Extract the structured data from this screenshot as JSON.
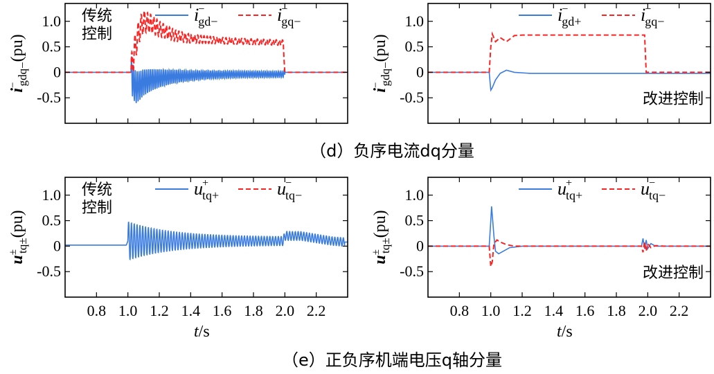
{
  "captions": {
    "d": "（d）负序电流dq分量",
    "e": "（e）正负序机端电压q轴分量"
  },
  "colors": {
    "blue": "#3a7be0",
    "red": "#ff2020"
  },
  "chart_data": [
    {
      "id": "d_left",
      "type": "line",
      "ylabel": {
        "main": "i",
        "sup": "−",
        "sub": "gdq−",
        "suffix": "(pu)"
      },
      "ylim": [
        -1.0,
        1.35
      ],
      "xlim": [
        0.6,
        2.4
      ],
      "yticks": [
        "1.0",
        "0.5",
        "0",
        "-0.5"
      ],
      "ytick_values": [
        1.0,
        0.5,
        0,
        -0.5
      ],
      "annotation": [
        "传统",
        "控制"
      ],
      "legend": [
        {
          "main": "i",
          "sup": "−",
          "sub": "gd−",
          "color": "blue",
          "dash": false
        },
        {
          "main": "i",
          "sup": "−",
          "sub": "gq−",
          "color": "red",
          "dash": true
        }
      ],
      "series": [
        {
          "color": "blue",
          "dash": false,
          "x": [
            0.6,
            1.02,
            1.03,
            1.05,
            1.08,
            1.1,
            1.15,
            1.2,
            1.3,
            1.5,
            1.7,
            1.9,
            1.99,
            2.0,
            2.4
          ],
          "y": [
            0,
            0,
            -0.15,
            -0.3,
            -0.25,
            -0.2,
            -0.15,
            -0.12,
            -0.08,
            -0.05,
            -0.04,
            -0.04,
            -0.04,
            0,
            0
          ],
          "osc": {
            "x0": 1.02,
            "x1": 2.0,
            "amp": 0.3,
            "amp_end": 0.06,
            "period": 0.012
          }
        },
        {
          "color": "red",
          "dash": true,
          "x": [
            0.6,
            1.02,
            1.04,
            1.07,
            1.1,
            1.15,
            1.2,
            1.3,
            1.4,
            1.6,
            1.8,
            1.99,
            2.0,
            2.4
          ],
          "y": [
            0,
            0,
            0.4,
            0.8,
            1.0,
            0.95,
            0.85,
            0.72,
            0.66,
            0.62,
            0.6,
            0.58,
            0,
            0
          ],
          "osc": {
            "x0": 1.02,
            "x1": 2.0,
            "amp": 0.25,
            "amp_end": 0.05,
            "period": 0.02
          }
        }
      ]
    },
    {
      "id": "d_right",
      "type": "line",
      "ylabel": {
        "main": "i",
        "sup": "−",
        "sub": "gdq−",
        "suffix": "(pu)"
      },
      "ylim": [
        -1.0,
        1.35
      ],
      "xlim": [
        0.6,
        2.4
      ],
      "yticks": [
        "1.0",
        "0.5",
        "0",
        "-0.5"
      ],
      "ytick_values": [
        1.0,
        0.5,
        0,
        -0.5
      ],
      "annotation": [
        "改进控制"
      ],
      "legend": [
        {
          "main": "i",
          "sup": "−",
          "sub": "gd+",
          "color": "blue",
          "dash": false
        },
        {
          "main": "i",
          "sup": "−",
          "sub": "gq−",
          "color": "red",
          "dash": true
        }
      ],
      "series": [
        {
          "color": "blue",
          "dash": false,
          "x": [
            0.6,
            0.99,
            1.0,
            1.01,
            1.03,
            1.06,
            1.1,
            1.15,
            1.25,
            1.5,
            2.4
          ],
          "y": [
            0,
            0,
            -0.35,
            -0.3,
            -0.15,
            -0.02,
            0.04,
            0.0,
            -0.02,
            -0.02,
            -0.02
          ]
        },
        {
          "color": "red",
          "dash": true,
          "x": [
            0.6,
            0.99,
            1.0,
            1.01,
            1.03,
            1.06,
            1.1,
            1.15,
            1.2,
            1.98,
            1.99,
            2.4
          ],
          "y": [
            0,
            0,
            0.5,
            0.75,
            0.6,
            0.68,
            0.6,
            0.72,
            0.73,
            0.73,
            0,
            0
          ]
        }
      ]
    },
    {
      "id": "e_left",
      "type": "line",
      "ylabel": {
        "main": "u",
        "sup": "±",
        "sub": "tq±",
        "suffix": "(pu)"
      },
      "ylim": [
        -1.0,
        1.35
      ],
      "xlim": [
        0.6,
        2.4
      ],
      "yticks": [
        "1.0",
        "0.5",
        "0",
        "-0.5"
      ],
      "ytick_values": [
        1.0,
        0.5,
        0,
        -0.5
      ],
      "xticks": [
        "0.8",
        "1.0",
        "1.2",
        "1.4",
        "1.6",
        "1.8",
        "2.0",
        "2.2"
      ],
      "xtick_values": [
        0.8,
        1.0,
        1.2,
        1.4,
        1.6,
        1.8,
        2.0,
        2.2
      ],
      "xlabel": {
        "main": "t",
        "suffix": "/s"
      },
      "annotation": [
        "传统",
        "控制"
      ],
      "legend": [
        {
          "main": "u",
          "sup": "+",
          "sub": "tq+",
          "color": "blue",
          "dash": false
        },
        {
          "main": "u",
          "sup": "−",
          "sub": "tq−",
          "color": "red",
          "dash": true
        }
      ],
      "series": [
        {
          "color": "blue",
          "dash": false,
          "x": [
            0.6,
            0.99,
            1.0,
            1.2,
            1.5,
            1.99,
            2.0,
            2.1,
            2.2,
            2.3,
            2.38
          ],
          "y": [
            0.02,
            0.02,
            0.1,
            0.1,
            0.1,
            0.1,
            0.2,
            0.2,
            0.15,
            0.1,
            0.08
          ],
          "osc": {
            "x0": 1.0,
            "x1": 2.38,
            "amp": 0.3,
            "amp_end": 0.08,
            "period": 0.018
          }
        }
      ]
    },
    {
      "id": "e_right",
      "type": "line",
      "ylabel": {
        "main": "u",
        "sup": "±",
        "sub": "tq±",
        "suffix": "(pu)"
      },
      "ylim": [
        -1.0,
        1.35
      ],
      "xlim": [
        0.6,
        2.4
      ],
      "yticks": [
        "1.0",
        "0.5",
        "0",
        "-0.5"
      ],
      "ytick_values": [
        1.0,
        0.5,
        0,
        -0.5
      ],
      "xticks": [
        "0.8",
        "1.0",
        "1.2",
        "1.4",
        "1.6",
        "1.8",
        "2.0",
        "2.2"
      ],
      "xtick_values": [
        0.8,
        1.0,
        1.2,
        1.4,
        1.6,
        1.8,
        2.0,
        2.2
      ],
      "xlabel": {
        "main": "t",
        "suffix": "/s"
      },
      "annotation": [
        "改进控制"
      ],
      "legend": [
        {
          "main": "u",
          "sup": "+",
          "sub": "tq+",
          "color": "blue",
          "dash": false
        },
        {
          "main": "u",
          "sup": "−",
          "sub": "tq−",
          "color": "red",
          "dash": true
        }
      ],
      "series": [
        {
          "color": "blue",
          "dash": false,
          "x": [
            0.6,
            0.99,
            1.0,
            1.005,
            1.01,
            1.02,
            1.03,
            1.05,
            1.08,
            1.12,
            1.2,
            1.3,
            1.96,
            1.97,
            1.98,
            1.99,
            2.0,
            2.02,
            2.05,
            2.1,
            2.4
          ],
          "y": [
            0,
            0,
            0.5,
            0.78,
            0.6,
            0.2,
            -0.1,
            -0.15,
            -0.1,
            -0.03,
            0,
            0,
            0,
            0.15,
            -0.05,
            0.12,
            -0.05,
            0.05,
            0.0,
            0,
            0
          ]
        },
        {
          "color": "red",
          "dash": true,
          "x": [
            0.6,
            0.99,
            1.0,
            1.01,
            1.02,
            1.04,
            1.06,
            1.1,
            1.15,
            1.96,
            1.97,
            1.98,
            1.99,
            2.0,
            2.02,
            2.05,
            2.1,
            2.4
          ],
          "y": [
            0,
            0,
            -0.4,
            -0.3,
            0.05,
            0.12,
            0.08,
            0.03,
            0,
            0,
            -0.12,
            0.08,
            -0.1,
            0.05,
            -0.03,
            0.01,
            0,
            0
          ]
        }
      ]
    }
  ]
}
